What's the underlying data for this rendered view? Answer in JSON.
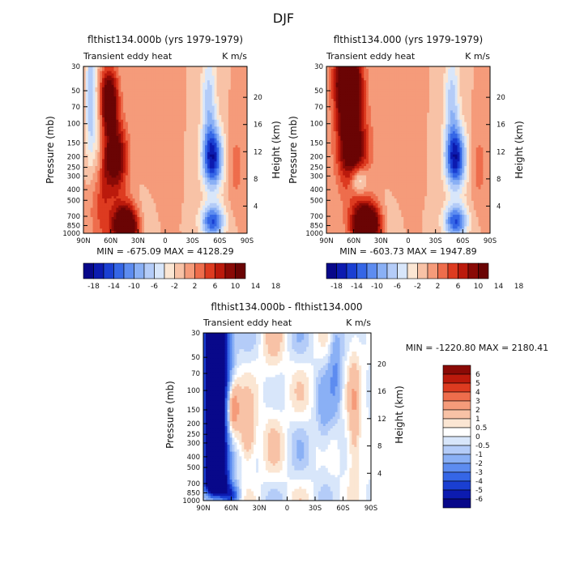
{
  "figure": {
    "title": "DJF"
  },
  "palette": {
    "main": [
      "#08088a",
      "#0c1bb0",
      "#1a3fd2",
      "#3566e6",
      "#5d8cf0",
      "#8ab0f5",
      "#b4ccf8",
      "#d8e6fa",
      "#fbe6d3",
      "#f8c2a6",
      "#f59b7a",
      "#ee6d4c",
      "#dd3b20",
      "#bb1a0c",
      "#8a0a06",
      "#6a0404"
    ],
    "diff": [
      "#08088a",
      "#0c1bb0",
      "#1a3fd2",
      "#3566e6",
      "#5d8cf0",
      "#8ab0f5",
      "#b4ccf8",
      "#d8e6fa",
      "#ffffff",
      "#fbe6d3",
      "#f8c2a6",
      "#f59b7a",
      "#ee6d4c",
      "#dd3b20",
      "#bb1a0c",
      "#8a0a06"
    ]
  },
  "chart_data": [
    {
      "type": "heatmap",
      "title": "flthist134.000b (yrs 1979-1979)",
      "subtitle_left": "Transient eddy heat",
      "subtitle_right": "K m/s",
      "ylabel": "Pressure (mb)",
      "ylabel_right": "Height (km)",
      "x_ticks": [
        "90N",
        "60N",
        "30N",
        "0",
        "30S",
        "60S",
        "90S"
      ],
      "x_range": [
        90,
        -90
      ],
      "y_ticks": [
        "30",
        "50",
        "70",
        "100",
        "150",
        "200",
        "250",
        "300",
        "400",
        "500",
        "700",
        "850",
        "1000"
      ],
      "y_range": [
        30,
        1000
      ],
      "height_ticks": [
        "20",
        "16",
        "12",
        "8",
        "4"
      ],
      "min_max_text": "MIN = -675.09   MAX = 4128.29",
      "colorbar_labels": [
        "-18",
        "-14",
        "-10",
        "-6",
        "-2",
        "2",
        "6",
        "10",
        "14",
        "18"
      ],
      "contour_levels": [
        -18,
        -16,
        -14,
        -12,
        -10,
        -8,
        -6,
        -4,
        -2,
        0,
        2,
        4,
        6,
        8,
        10,
        12,
        14,
        16,
        18
      ]
    },
    {
      "type": "heatmap",
      "title": "flthist134.000 (yrs 1979-1979)",
      "subtitle_left": "Transient eddy heat",
      "subtitle_right": "K m/s",
      "ylabel": "Pressure (mb)",
      "ylabel_right": "Height (km)",
      "x_ticks": [
        "90N",
        "60N",
        "30N",
        "0",
        "30S",
        "60S",
        "90S"
      ],
      "x_range": [
        90,
        -90
      ],
      "y_ticks": [
        "30",
        "50",
        "70",
        "100",
        "150",
        "200",
        "250",
        "300",
        "400",
        "500",
        "700",
        "850",
        "1000"
      ],
      "y_range": [
        30,
        1000
      ],
      "height_ticks": [
        "20",
        "16",
        "12",
        "8",
        "4"
      ],
      "min_max_text": "MIN = -603.73   MAX = 1947.89",
      "colorbar_labels": [
        "-18",
        "-14",
        "-10",
        "-6",
        "-2",
        "2",
        "6",
        "10",
        "14",
        "18"
      ],
      "contour_levels": [
        -18,
        -16,
        -14,
        -12,
        -10,
        -8,
        -6,
        -4,
        -2,
        0,
        2,
        4,
        6,
        8,
        10,
        12,
        14,
        16,
        18
      ]
    },
    {
      "type": "heatmap",
      "title": "flthist134.000b - flthist134.000",
      "subtitle_left": "Transient eddy heat",
      "subtitle_right": "K m/s",
      "ylabel": "Pressure (mb)",
      "ylabel_right": "Height (km)",
      "x_ticks": [
        "90N",
        "60N",
        "30N",
        "0",
        "30S",
        "60S",
        "90S"
      ],
      "x_range": [
        90,
        -90
      ],
      "y_ticks": [
        "30",
        "50",
        "70",
        "100",
        "150",
        "200",
        "250",
        "300",
        "400",
        "500",
        "700",
        "850",
        "1000"
      ],
      "y_range": [
        30,
        1000
      ],
      "height_ticks": [
        "20",
        "16",
        "12",
        "8",
        "4"
      ],
      "min_max_text": "MIN = -1220.80   MAX = 2180.41",
      "colorbar_labels": [
        "6",
        "5",
        "4",
        "3",
        "2",
        "1",
        "0.5",
        "0",
        "-0.5",
        "-1",
        "-2",
        "-3",
        "-4",
        "-5",
        "-6"
      ],
      "contour_levels": [
        -6,
        -5,
        -4,
        -3,
        -2,
        -1,
        -0.5,
        0,
        0.5,
        1,
        2,
        3,
        4,
        5,
        6
      ]
    }
  ]
}
